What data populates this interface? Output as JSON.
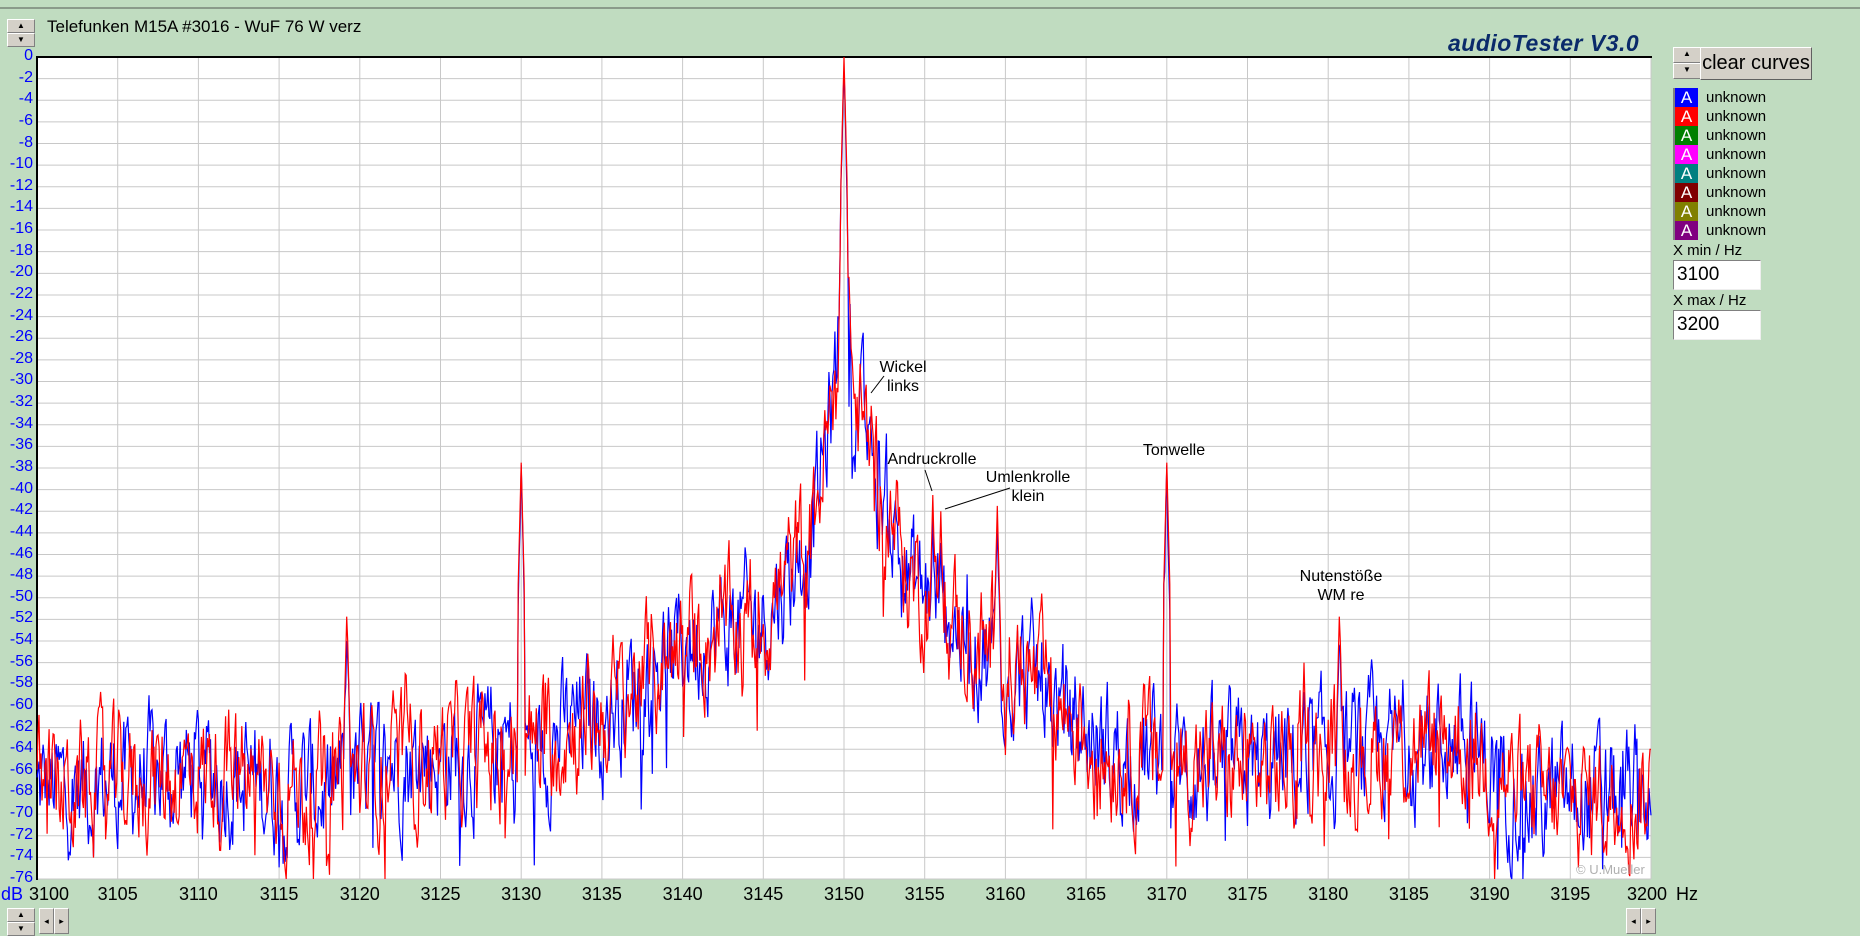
{
  "window": {
    "title": "Telefunken M15A #3016 - WuF 76 W verz",
    "brand": "audioTester  V3.0",
    "copyright": "© U.Mueller"
  },
  "panel": {
    "clear_label": "clear curves",
    "legend": [
      {
        "label": "unknown",
        "glyph": "A",
        "color": "#0000ff"
      },
      {
        "label": "unknown",
        "glyph": "A",
        "color": "#ff0000"
      },
      {
        "label": "unknown",
        "glyph": "A",
        "color": "#008000"
      },
      {
        "label": "unknown",
        "glyph": "A",
        "color": "#ff00ff"
      },
      {
        "label": "unknown",
        "glyph": "A",
        "color": "#008080"
      },
      {
        "label": "unknown",
        "glyph": "A",
        "color": "#800000"
      },
      {
        "label": "unknown",
        "glyph": "A",
        "color": "#808000"
      },
      {
        "label": "unknown",
        "glyph": "A",
        "color": "#800080"
      }
    ],
    "xmin_label": "X min / Hz",
    "xmin_value": "3100",
    "xmax_label": "X max / Hz",
    "xmax_value": "3200"
  },
  "chart_data": {
    "type": "line",
    "title": "Telefunken M15A #3016 - WuF 76 W verz",
    "xlabel": "Hz",
    "ylabel": "dB",
    "xlim": [
      3100,
      3200
    ],
    "ylim": [
      -76,
      0
    ],
    "x_ticks": [
      3100,
      3105,
      3110,
      3115,
      3120,
      3125,
      3130,
      3135,
      3140,
      3145,
      3150,
      3155,
      3160,
      3165,
      3170,
      3175,
      3180,
      3185,
      3190,
      3195,
      3200
    ],
    "y_ticks": [
      0,
      -2,
      -4,
      -6,
      -8,
      -10,
      -12,
      -14,
      -16,
      -18,
      -20,
      -22,
      -24,
      -26,
      -28,
      -30,
      -32,
      -34,
      -36,
      -38,
      -40,
      -42,
      -44,
      -46,
      -48,
      -50,
      -52,
      -54,
      -56,
      -58,
      -60,
      -62,
      -64,
      -66,
      -68,
      -70,
      -72,
      -74,
      -76
    ],
    "grid": true,
    "series": [
      {
        "name": "unknown (blue)",
        "color": "#0000ff"
      },
      {
        "name": "unknown (red)",
        "color": "#ff0000"
      }
    ],
    "noise_floor": [
      [
        3100,
        -68
      ],
      [
        3110,
        -66
      ],
      [
        3118,
        -68
      ],
      [
        3122,
        -65
      ],
      [
        3130,
        -64
      ],
      [
        3135,
        -61
      ],
      [
        3140,
        -54
      ],
      [
        3145,
        -52
      ],
      [
        3148,
        -44
      ],
      [
        3149.5,
        -30
      ],
      [
        3150,
        -10
      ],
      [
        3150.6,
        -32
      ],
      [
        3152,
        -38
      ],
      [
        3154,
        -48
      ],
      [
        3158,
        -54
      ],
      [
        3162,
        -58
      ],
      [
        3166,
        -64
      ],
      [
        3175,
        -66
      ],
      [
        3188,
        -63
      ],
      [
        3193,
        -69
      ],
      [
        3200,
        -68
      ]
    ],
    "peaks": [
      [
        3119.2,
        -51
      ],
      [
        3130,
        -37.5
      ],
      [
        3150,
        0
      ],
      [
        3151.7,
        -31.5
      ],
      [
        3155.5,
        -40.5
      ],
      [
        3156,
        -42
      ],
      [
        3159.5,
        -41.5
      ],
      [
        3170,
        -37.5
      ],
      [
        3178.5,
        -56
      ],
      [
        3180.7,
        -51
      ]
    ],
    "annotations": [
      {
        "lines": [
          "Wickel",
          "links"
        ],
        "x": 3151.7
      },
      {
        "lines": [
          "Andruckrolle"
        ],
        "x": 3155.5
      },
      {
        "lines": [
          "Umlenkrolle",
          "klein"
        ],
        "x": 3156
      },
      {
        "lines": [
          "Tonwelle"
        ],
        "x": 3170
      },
      {
        "lines": [
          "Nutenstöße",
          "WM re"
        ],
        "x": 3180.7
      }
    ]
  }
}
